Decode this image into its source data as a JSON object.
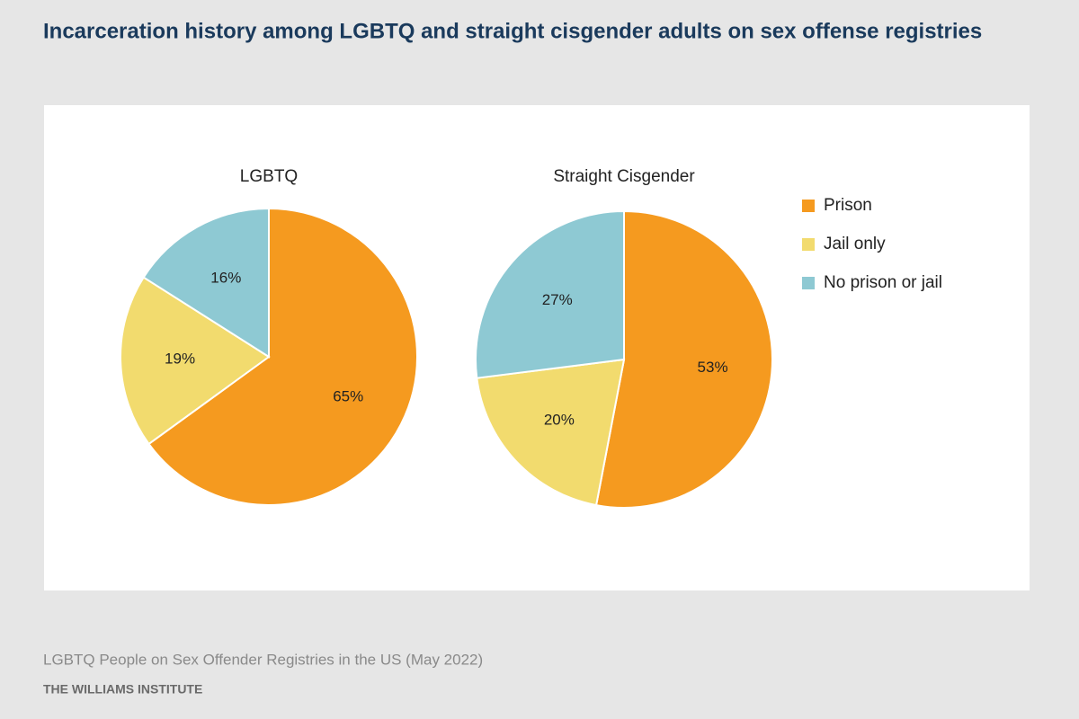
{
  "title": "Incarceration history among LGBTQ and straight cisgender adults on sex offense registries",
  "source": "LGBTQ People on Sex Offender Registries in the US (May 2022)",
  "publisher": "THE WILLIAMS INSTITUTE",
  "chart_data": [
    {
      "type": "pie",
      "title": "LGBTQ",
      "categories": [
        "Prison",
        "Jail only",
        "No prison or jail"
      ],
      "values": [
        65,
        19,
        16
      ],
      "value_labels": [
        "65%",
        "19%",
        "16%"
      ],
      "colors": [
        "#f59a1f",
        "#f2db6e",
        "#8ec9d3"
      ],
      "legend": "right"
    },
    {
      "type": "pie",
      "title": "Straight Cisgender",
      "categories": [
        "Prison",
        "Jail only",
        "No prison or jail"
      ],
      "values": [
        53,
        20,
        27
      ],
      "value_labels": [
        "53%",
        "20%",
        "27%"
      ],
      "colors": [
        "#f59a1f",
        "#f2db6e",
        "#8ec9d3"
      ],
      "legend": "right"
    }
  ]
}
